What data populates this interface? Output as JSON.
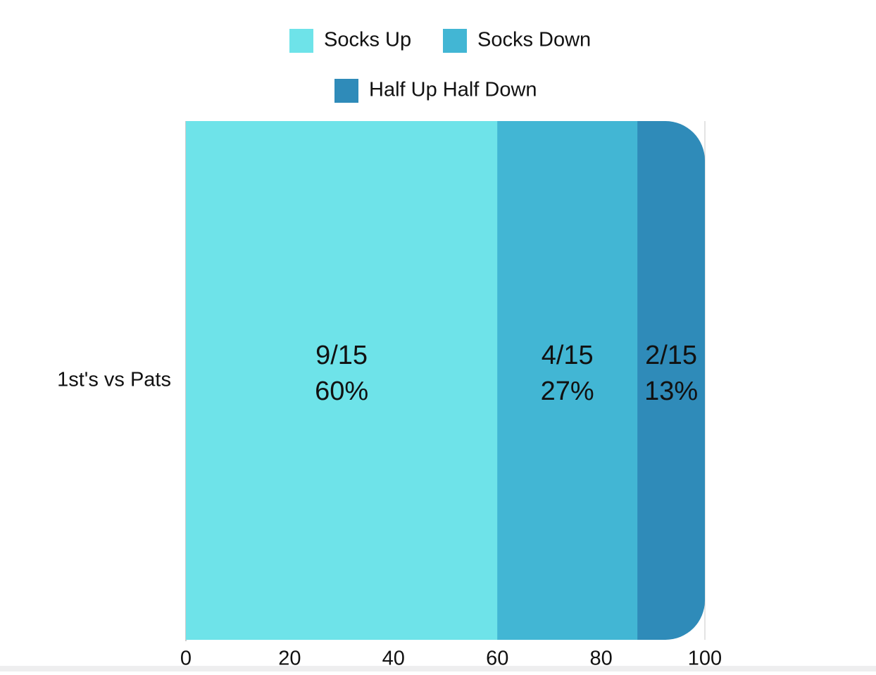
{
  "chart_data": {
    "type": "bar",
    "orientation": "horizontal",
    "stacked": true,
    "categories": [
      "1st's vs Pats"
    ],
    "series": [
      {
        "name": "Socks Up",
        "values": [
          60
        ],
        "label_top": "9/15",
        "label_bottom": "60%",
        "color": "#6ee3e9"
      },
      {
        "name": "Socks Down",
        "values": [
          27
        ],
        "label_top": "4/15",
        "label_bottom": "27%",
        "color": "#42b6d4"
      },
      {
        "name": "Half Up Half Down",
        "values": [
          13
        ],
        "label_top": "2/15",
        "label_bottom": "13%",
        "color": "#2f8bb9"
      }
    ],
    "xlim": [
      0,
      100
    ],
    "xticks": [
      "0",
      "20",
      "40",
      "60",
      "80",
      "100"
    ],
    "legend_placement": "top",
    "grid": false
  }
}
